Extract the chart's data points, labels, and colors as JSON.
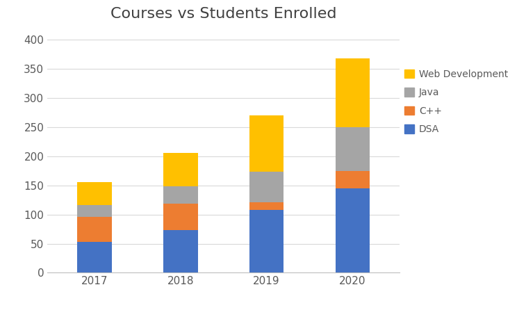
{
  "title": "Courses vs Students Enrolled",
  "categories": [
    "2017",
    "2018",
    "2019",
    "2020"
  ],
  "series": {
    "DSA": [
      53,
      73,
      108,
      145
    ],
    "C++": [
      43,
      45,
      13,
      30
    ],
    "Java": [
      20,
      30,
      52,
      75
    ],
    "Web Development": [
      40,
      58,
      97,
      118
    ]
  },
  "colors": {
    "DSA": "#4472C4",
    "C++": "#ED7D31",
    "Java": "#A5A5A5",
    "Web Development": "#FFC000"
  },
  "ylim": [
    0,
    420
  ],
  "yticks": [
    0,
    50,
    100,
    150,
    200,
    250,
    300,
    350,
    400
  ],
  "legend_order": [
    "Web Development",
    "Java",
    "C++",
    "DSA"
  ],
  "background_color": "#FFFFFF",
  "title_fontsize": 16,
  "tick_fontsize": 11,
  "legend_fontsize": 10,
  "bar_width": 0.4
}
